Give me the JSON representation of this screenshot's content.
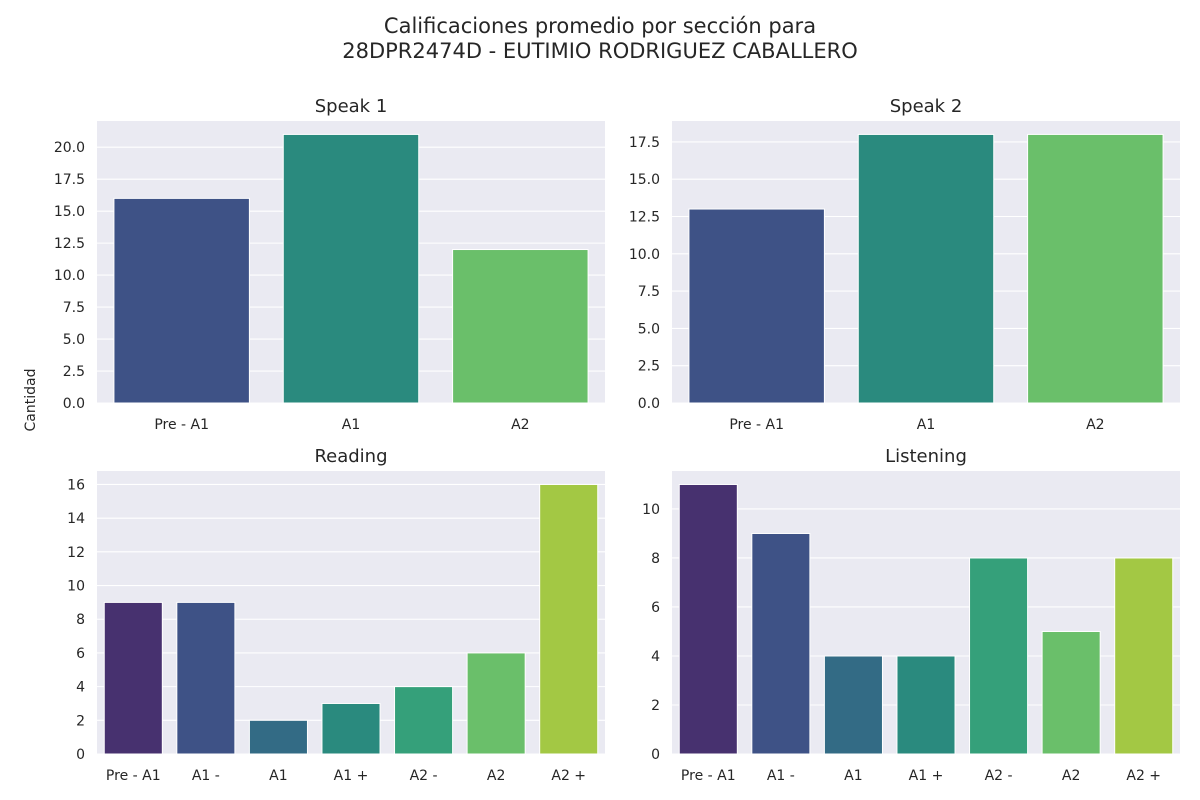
{
  "figure": {
    "title_line1": "Calificaciones promedio por sección para",
    "title_line2": "28DPR2474D - EUTIMIO RODRIGUEZ CABALLERO",
    "ylabel": "Cantidad"
  },
  "chart_data": [
    {
      "type": "bar",
      "title": "Speak 1",
      "categories": [
        "Pre - A1",
        "A1",
        "A2"
      ],
      "values": [
        16,
        21,
        12
      ],
      "colors": [
        "#3e5286",
        "#2a8a7e",
        "#6abf6a"
      ],
      "ylim": [
        0,
        22.05
      ],
      "yticks": [
        0,
        2.5,
        5,
        7.5,
        10,
        12.5,
        15,
        17.5,
        20
      ],
      "ytick_labels": [
        "0.0",
        "2.5",
        "5.0",
        "7.5",
        "10.0",
        "12.5",
        "15.0",
        "17.5",
        "20.0"
      ],
      "grid": true
    },
    {
      "type": "bar",
      "title": "Speak 2",
      "categories": [
        "Pre - A1",
        "A1",
        "A2"
      ],
      "values": [
        13,
        18,
        18
      ],
      "colors": [
        "#3e5286",
        "#2a8a7e",
        "#6abf6a"
      ],
      "ylim": [
        0,
        18.9
      ],
      "yticks": [
        0,
        2.5,
        5,
        7.5,
        10,
        12.5,
        15,
        17.5
      ],
      "ytick_labels": [
        "0.0",
        "2.5",
        "5.0",
        "7.5",
        "10.0",
        "12.5",
        "15.0",
        "17.5"
      ],
      "grid": true
    },
    {
      "type": "bar",
      "title": "Reading",
      "categories": [
        "Pre - A1",
        "A1 -",
        "A1",
        "A1 +",
        "A2 -",
        "A2",
        "A2 +"
      ],
      "values": [
        9,
        9,
        2,
        3,
        4,
        6,
        16
      ],
      "colors": [
        "#47316f",
        "#3e5286",
        "#336b85",
        "#2a8a7e",
        "#35a07a",
        "#6abf6a",
        "#a3c844"
      ],
      "ylim": [
        0,
        16.8
      ],
      "yticks": [
        0,
        2,
        4,
        6,
        8,
        10,
        12,
        14,
        16
      ],
      "ytick_labels": [
        "0",
        "2",
        "4",
        "6",
        "8",
        "10",
        "12",
        "14",
        "16"
      ],
      "grid": true
    },
    {
      "type": "bar",
      "title": "Listening",
      "categories": [
        "Pre - A1",
        "A1 -",
        "A1",
        "A1 +",
        "A2 -",
        "A2",
        "A2 +"
      ],
      "values": [
        11,
        9,
        4,
        4,
        8,
        5,
        8
      ],
      "colors": [
        "#47316f",
        "#3e5286",
        "#336b85",
        "#2a8a7e",
        "#35a07a",
        "#6abf6a",
        "#a3c844"
      ],
      "ylim": [
        0,
        11.55
      ],
      "yticks": [
        0,
        2,
        4,
        6,
        8,
        10
      ],
      "ytick_labels": [
        "0",
        "2",
        "4",
        "6",
        "8",
        "10"
      ],
      "grid": true
    }
  ]
}
